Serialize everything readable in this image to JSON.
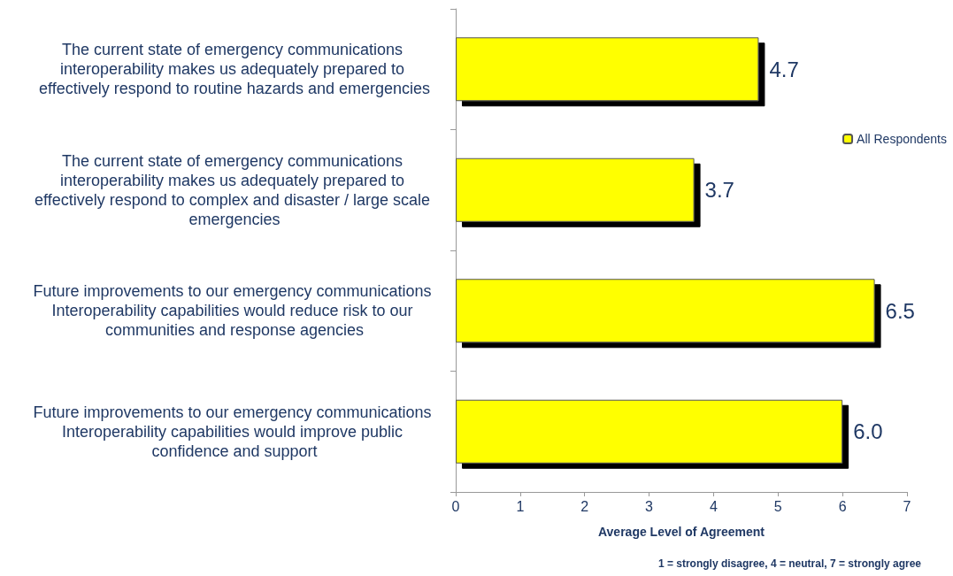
{
  "chart_data": {
    "type": "bar",
    "orientation": "horizontal",
    "categories": [
      "The current state of emergency communications interoperability makes us adequately prepared to effectively respond to routine hazards and emergencies",
      "The current state of emergency communications interoperability makes us adequately prepared to effectively respond to complex and disaster / large scale emergencies",
      "Future improvements to our emergency communications Interoperability capabilities would reduce risk to our communities and response agencies",
      "Future improvements to our emergency communications Interoperability capabilities would improve public confidence and support"
    ],
    "series": [
      {
        "name": "All Respondents",
        "color": "#ffff00",
        "values": [
          4.7,
          3.7,
          6.5,
          6.0
        ],
        "value_labels": [
          "4.7",
          "3.7",
          "6.5",
          "6.0"
        ]
      }
    ],
    "xlim": [
      0,
      7
    ],
    "xticks": [
      0,
      1,
      2,
      3,
      4,
      5,
      6,
      7
    ],
    "xlabel": "Average Level of Agreement",
    "annotations": [
      "1 = strongly disagree, 4 = neutral, 7 = strongly agree"
    ],
    "grid": false,
    "legend": "top right"
  }
}
